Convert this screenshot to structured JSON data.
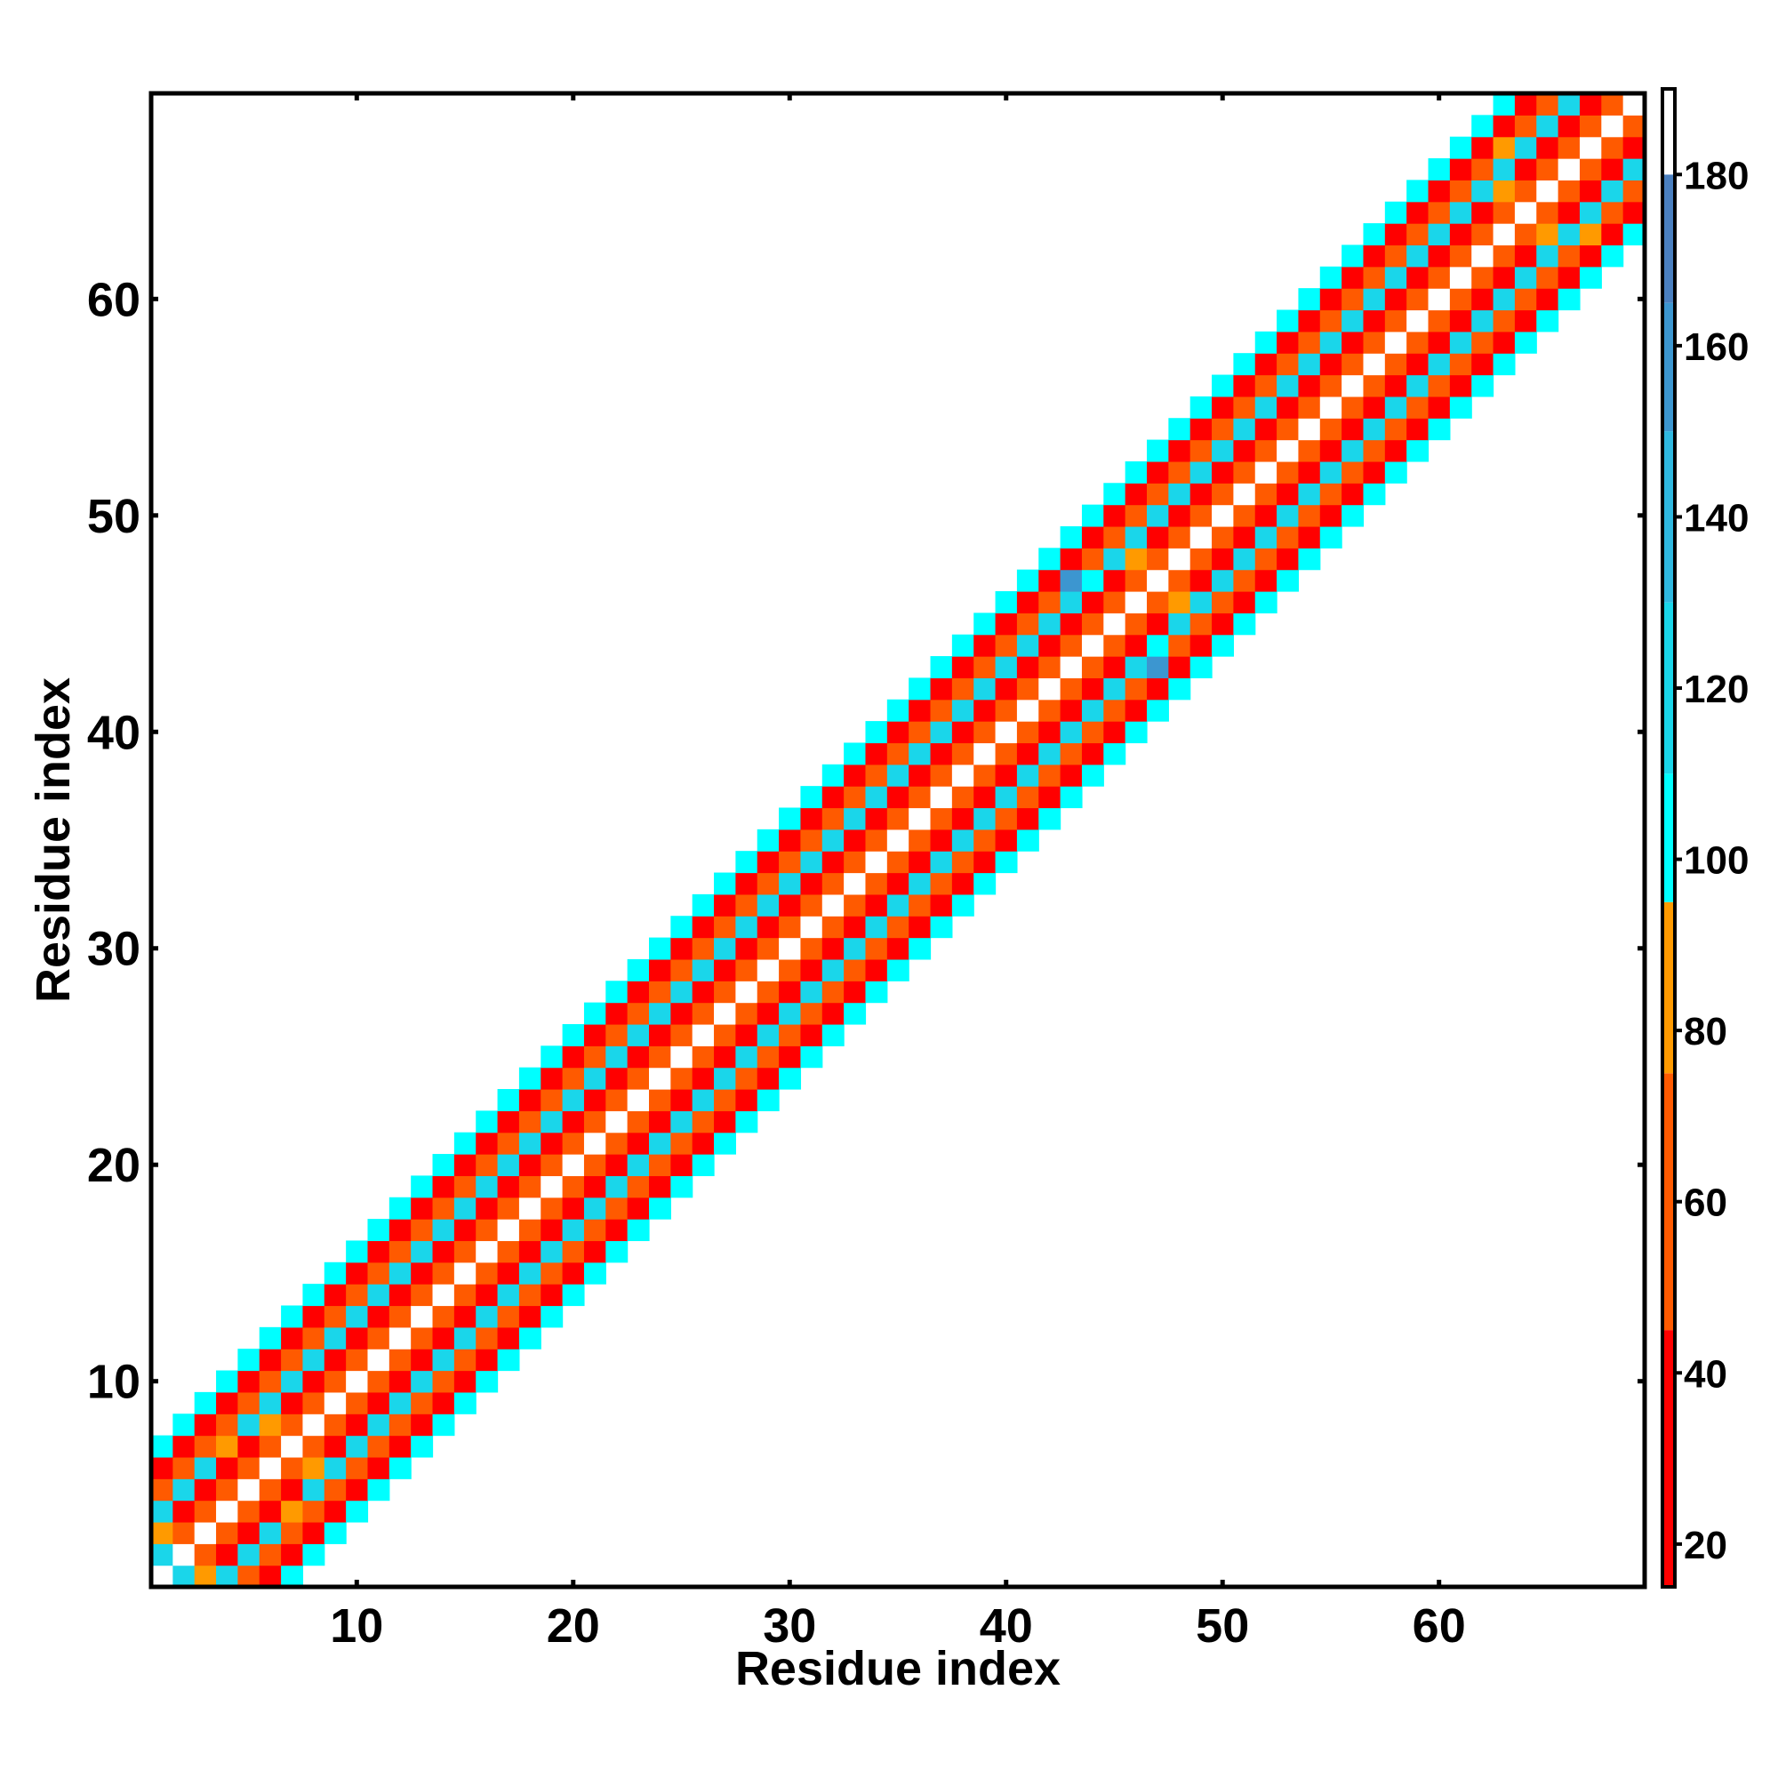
{
  "chart_data": {
    "type": "heatmap",
    "xlabel": "Residue index",
    "ylabel": "Residue index",
    "xlim": [
      0.5,
      69.5
    ],
    "ylim": [
      0.5,
      69.5
    ],
    "x_ticks": [
      10,
      20,
      30,
      40,
      50,
      60
    ],
    "y_ticks": [
      10,
      20,
      30,
      40,
      50,
      60
    ],
    "n_residues": 69,
    "band_halfwidth": 6,
    "colorbar": {
      "range": [
        15,
        190
      ],
      "ticks": [
        20,
        40,
        60,
        80,
        100,
        120,
        140,
        160,
        180
      ],
      "colors": [
        {
          "from": 15,
          "to": 45,
          "color": "#ff0000"
        },
        {
          "from": 45,
          "to": 75,
          "color": "#ff5a00"
        },
        {
          "from": 75,
          "to": 95,
          "color": "#ff9a00"
        },
        {
          "from": 95,
          "to": 110,
          "color": "#00ffff"
        },
        {
          "from": 110,
          "to": 130,
          "color": "#1ad6ea"
        },
        {
          "from": 130,
          "to": 150,
          "color": "#2fb8e0"
        },
        {
          "from": 150,
          "to": 165,
          "color": "#3c96d0"
        },
        {
          "from": 165,
          "to": 180,
          "color": "#4a7fbf"
        },
        {
          "from": 180,
          "to": 190,
          "color": "#ffffff"
        }
      ]
    },
    "diagonal_value": 190,
    "offset_values": {
      "1": 60,
      "2": 22,
      "3": 120,
      "4": 65,
      "5": 35,
      "6": 100
    },
    "special_cells": [
      {
        "x": 43,
        "y": 47,
        "value": 160
      },
      {
        "x": 47,
        "y": 43,
        "value": 160
      },
      {
        "x": 44,
        "y": 47,
        "value": 100
      },
      {
        "x": 47,
        "y": 44,
        "value": 100
      },
      {
        "x": 46,
        "y": 48,
        "value": 80
      },
      {
        "x": 48,
        "y": 46,
        "value": 80
      },
      {
        "x": 1,
        "y": 3,
        "value": 80
      },
      {
        "x": 3,
        "y": 1,
        "value": 80
      },
      {
        "x": 2,
        "y": 1,
        "value": 120
      },
      {
        "x": 1,
        "y": 2,
        "value": 120
      },
      {
        "x": 4,
        "y": 7,
        "value": 80
      },
      {
        "x": 7,
        "y": 4,
        "value": 80
      },
      {
        "x": 6,
        "y": 8,
        "value": 80
      },
      {
        "x": 8,
        "y": 6,
        "value": 80
      },
      {
        "x": 63,
        "y": 67,
        "value": 80
      },
      {
        "x": 67,
        "y": 63,
        "value": 80
      },
      {
        "x": 65,
        "y": 63,
        "value": 80
      },
      {
        "x": 63,
        "y": 65,
        "value": 80
      }
    ]
  }
}
